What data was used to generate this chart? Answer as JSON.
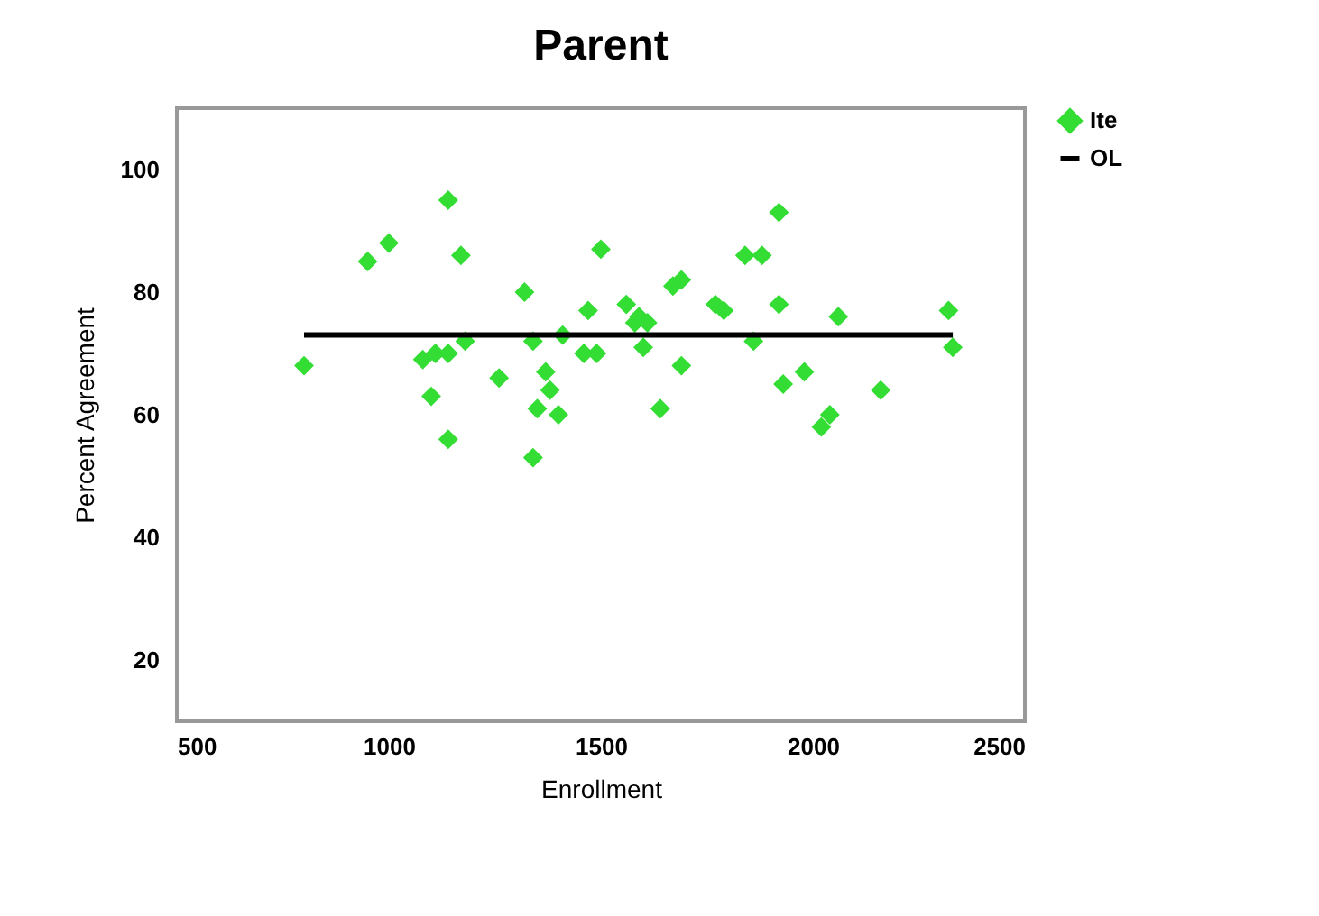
{
  "chart_data": {
    "type": "scatter",
    "title": "Parent",
    "xlabel": "Enrollment",
    "ylabel": "Percent Agreement",
    "xlim": [
      500,
      2500
    ],
    "xticks": [
      500,
      1000,
      1500,
      2000,
      2500
    ],
    "ylim": [
      10,
      110
    ],
    "yticks": [
      20,
      40,
      60,
      80,
      100
    ],
    "grid": false,
    "legend": "right",
    "series": [
      {
        "name": "Ite",
        "color": "#33dd33",
        "marker": "diamond",
        "x": [
          800,
          950,
          1000,
          1140,
          1170,
          1080,
          1110,
          1140,
          1180,
          1100,
          1140,
          1260,
          1320,
          1340,
          1350,
          1340,
          1370,
          1380,
          1400,
          1410,
          1470,
          1460,
          1490,
          1500,
          1560,
          1580,
          1590,
          1600,
          1610,
          1640,
          1670,
          1690,
          1690,
          1770,
          1790,
          1840,
          1860,
          1880,
          1920,
          1920,
          1930,
          1980,
          2020,
          2040,
          2060,
          2160,
          2320,
          2330
        ],
        "values": [
          68,
          85,
          88,
          95,
          86,
          69,
          70,
          70,
          72,
          63,
          56,
          66,
          80,
          72,
          61,
          53,
          67,
          64,
          60,
          73,
          77,
          70,
          70,
          87,
          78,
          75,
          76,
          71,
          75,
          61,
          81,
          82,
          68,
          78,
          77,
          86,
          72,
          86,
          93,
          78,
          65,
          67,
          58,
          60,
          76,
          64,
          77,
          71
        ]
      },
      {
        "name": "OL",
        "color": "#000000",
        "type": "line",
        "x": [
          800,
          2330
        ],
        "values": [
          73,
          73
        ]
      }
    ]
  }
}
